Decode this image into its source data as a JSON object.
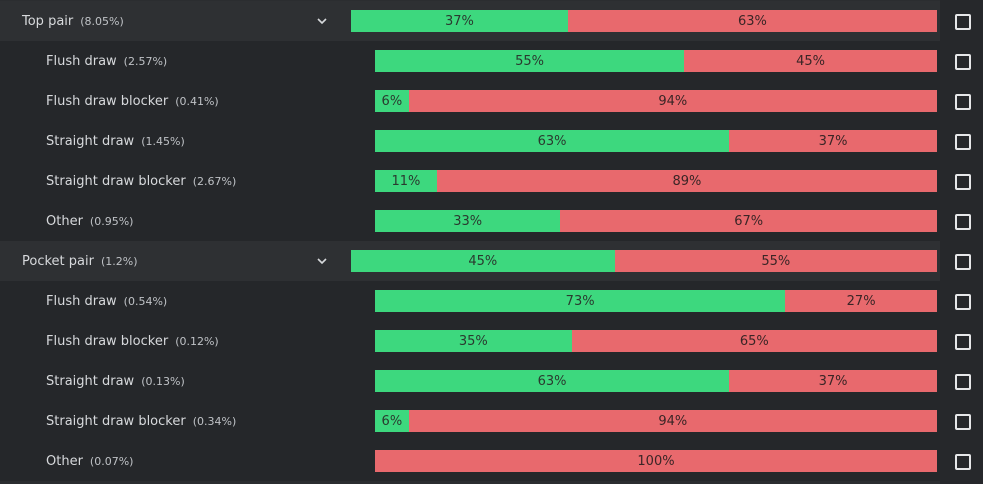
{
  "colors": {
    "win": "#3dd87e",
    "lose": "#e8696d"
  },
  "rows": [
    {
      "kind": "group",
      "name": "Top pair",
      "pct": "(8.05%)",
      "win": 37,
      "win_label": "37%",
      "lose_label": "63%",
      "icon": "chevron-down-icon"
    },
    {
      "kind": "sub",
      "name": "Flush draw",
      "pct": "(2.57%)",
      "win": 55,
      "win_label": "55%",
      "lose_label": "45%"
    },
    {
      "kind": "sub",
      "name": "Flush draw blocker",
      "pct": "(0.41%)",
      "win": 6,
      "win_label": "6%",
      "lose_label": "94%"
    },
    {
      "kind": "sub",
      "name": "Straight draw",
      "pct": "(1.45%)",
      "win": 63,
      "win_label": "63%",
      "lose_label": "37%"
    },
    {
      "kind": "sub",
      "name": "Straight draw blocker",
      "pct": "(2.67%)",
      "win": 11,
      "win_label": "11%",
      "lose_label": "89%"
    },
    {
      "kind": "sub",
      "name": "Other",
      "pct": "(0.95%)",
      "win": 33,
      "win_label": "33%",
      "lose_label": "67%"
    },
    {
      "kind": "group",
      "name": "Pocket pair",
      "pct": "(1.2%)",
      "win": 45,
      "win_label": "45%",
      "lose_label": "55%",
      "icon": "chevron-down-icon"
    },
    {
      "kind": "sub",
      "name": "Flush draw",
      "pct": "(0.54%)",
      "win": 73,
      "win_label": "73%",
      "lose_label": "27%"
    },
    {
      "kind": "sub",
      "name": "Flush draw blocker",
      "pct": "(0.12%)",
      "win": 35,
      "win_label": "35%",
      "lose_label": "65%"
    },
    {
      "kind": "sub",
      "name": "Straight draw",
      "pct": "(0.13%)",
      "win": 63,
      "win_label": "63%",
      "lose_label": "37%"
    },
    {
      "kind": "sub",
      "name": "Straight draw blocker",
      "pct": "(0.34%)",
      "win": 6,
      "win_label": "6%",
      "lose_label": "94%"
    },
    {
      "kind": "sub",
      "name": "Other",
      "pct": "(0.07%)",
      "win": 0,
      "win_label": "",
      "lose_label": "100%"
    }
  ]
}
